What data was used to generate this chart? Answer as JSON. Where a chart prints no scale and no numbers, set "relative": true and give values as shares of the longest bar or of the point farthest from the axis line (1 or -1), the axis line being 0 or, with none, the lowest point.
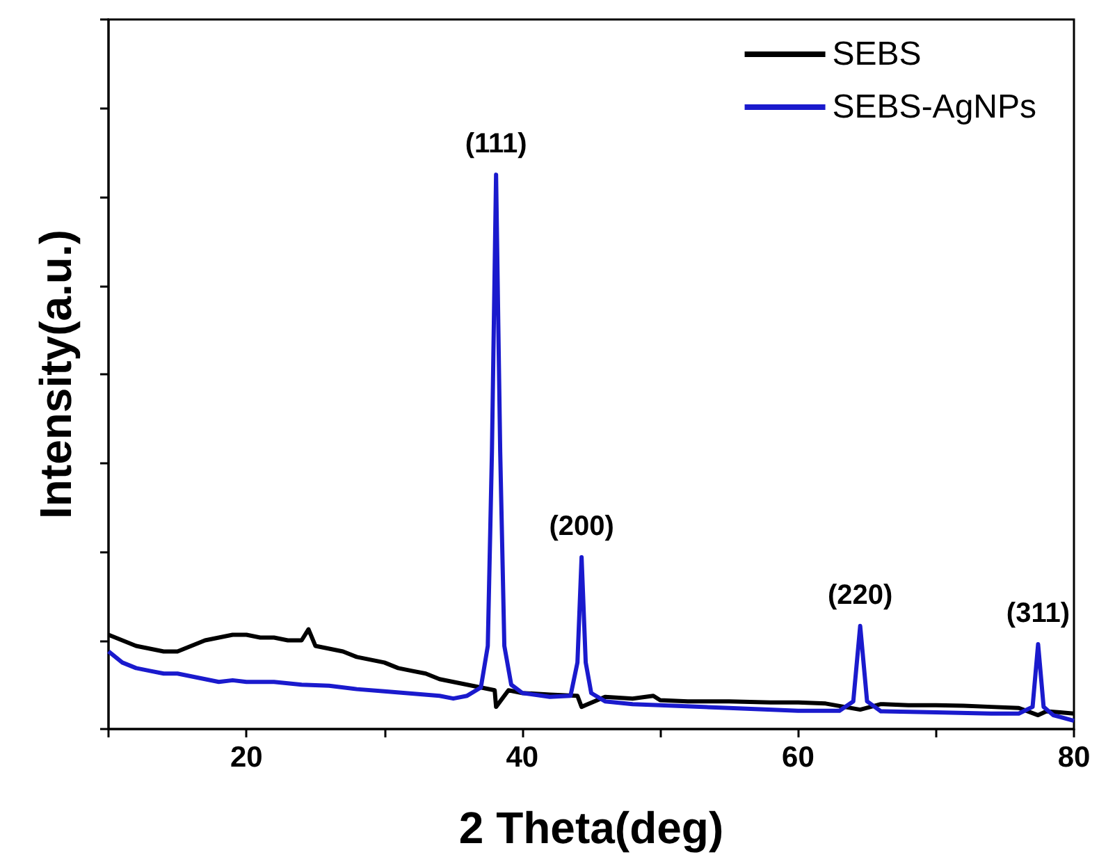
{
  "chart_data": {
    "type": "line",
    "xlabel": "2 Theta(deg)",
    "ylabel": "Intensity(a.u.)",
    "relative": true,
    "legend": "top right",
    "xlim": [
      10,
      80
    ],
    "xticks": [
      {
        "value": 10,
        "label": null
      },
      20,
      {
        "value": 30,
        "label": null
      },
      40,
      {
        "value": 50,
        "label": null
      },
      60,
      {
        "value": 70,
        "label": null
      },
      80
    ],
    "series": [
      {
        "name": "SEBS",
        "color": "#000000",
        "x": [
          10,
          11,
          12,
          13,
          14,
          15,
          16,
          17,
          18,
          19,
          20,
          21,
          22,
          23,
          24,
          24.5,
          25,
          26,
          27,
          28,
          29,
          30,
          31,
          32,
          33,
          34,
          35,
          36,
          37,
          38,
          38.1,
          39,
          40,
          42,
          44,
          44.3,
          46,
          48,
          49.5,
          50,
          52,
          55,
          58,
          60,
          62,
          64.5,
          66,
          68,
          70,
          72,
          74,
          76,
          77.4,
          78,
          79,
          80
        ],
        "values": [
          0.17,
          0.16,
          0.15,
          0.145,
          0.14,
          0.14,
          0.15,
          0.16,
          0.165,
          0.17,
          0.17,
          0.165,
          0.165,
          0.16,
          0.16,
          0.18,
          0.15,
          0.145,
          0.14,
          0.13,
          0.125,
          0.12,
          0.11,
          0.105,
          0.1,
          0.09,
          0.085,
          0.08,
          0.075,
          0.07,
          0.04,
          0.07,
          0.065,
          0.062,
          0.06,
          0.04,
          0.058,
          0.055,
          0.06,
          0.052,
          0.05,
          0.05,
          0.048,
          0.048,
          0.046,
          0.035,
          0.045,
          0.043,
          0.043,
          0.042,
          0.04,
          0.038,
          0.025,
          0.032,
          0.03,
          0.028
        ]
      },
      {
        "name": "SEBS-AgNPs",
        "color": "#1a1acd",
        "x": [
          10,
          11,
          12,
          13,
          14,
          15,
          16,
          17,
          18,
          19,
          20,
          22,
          24,
          26,
          28,
          30,
          32,
          34,
          35,
          36,
          37,
          37.5,
          37.8,
          38.1,
          38.4,
          38.7,
          39.2,
          40,
          42,
          43.5,
          44,
          44.3,
          44.6,
          45,
          46,
          48,
          50,
          55,
          60,
          63,
          64,
          64.5,
          65,
          66,
          70,
          74,
          76,
          77,
          77.4,
          77.8,
          78.5,
          80
        ],
        "values": [
          0.14,
          0.12,
          0.11,
          0.105,
          0.1,
          0.1,
          0.095,
          0.09,
          0.085,
          0.088,
          0.085,
          0.085,
          0.08,
          0.078,
          0.072,
          0.068,
          0.064,
          0.06,
          0.055,
          0.06,
          0.075,
          0.15,
          0.5,
          1.0,
          0.5,
          0.15,
          0.08,
          0.065,
          0.058,
          0.06,
          0.12,
          0.31,
          0.12,
          0.065,
          0.05,
          0.045,
          0.043,
          0.038,
          0.033,
          0.033,
          0.05,
          0.186,
          0.05,
          0.032,
          0.03,
          0.028,
          0.028,
          0.04,
          0.153,
          0.04,
          0.025,
          0.015
        ]
      }
    ],
    "annotations": [
      {
        "text": "(111)",
        "x": 38.1,
        "y": 1.0
      },
      {
        "text": "(200)",
        "x": 44.3,
        "y": 0.31
      },
      {
        "text": "(220)",
        "x": 64.5,
        "y": 0.186
      },
      {
        "text": "(311)",
        "x": 77.4,
        "y": 0.153
      }
    ]
  }
}
